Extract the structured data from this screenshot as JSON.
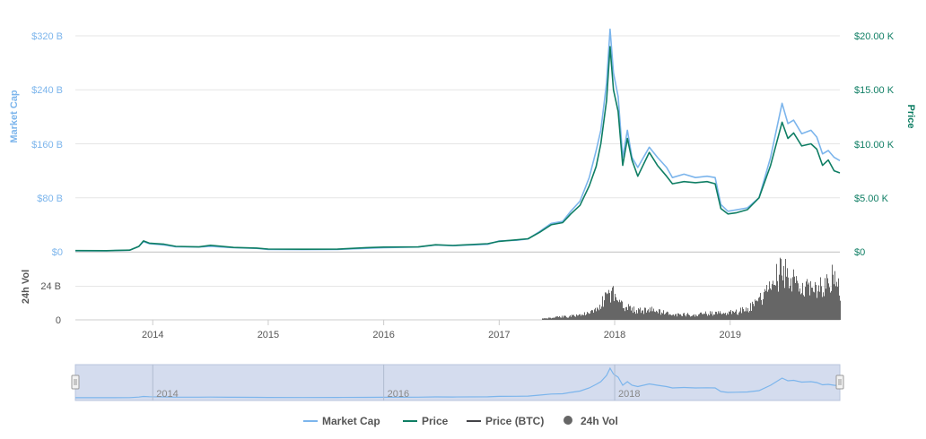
{
  "chart_data": {
    "type": "line",
    "axes": {
      "market_cap": {
        "label": "Market Cap",
        "ticks": [
          "$320 B",
          "$240 B",
          "$160 B",
          "$80 B",
          "$0"
        ],
        "tick_values": [
          320,
          240,
          160,
          80,
          0
        ],
        "ylim": [
          0,
          320
        ],
        "unit": "billion USD"
      },
      "price": {
        "label": "Price",
        "ticks": [
          "$20.00 K",
          "$15.00 K",
          "$10.00 K",
          "$5.00 K",
          "$0"
        ],
        "tick_values": [
          20000,
          15000,
          10000,
          5000,
          0
        ],
        "ylim": [
          0,
          20000
        ],
        "unit": "USD"
      },
      "volume": {
        "label": "24h Vol",
        "ticks": [
          "24 B",
          "0"
        ],
        "tick_values": [
          24,
          0
        ],
        "ylim": [
          0,
          48
        ],
        "unit": "billion USD"
      },
      "x": {
        "ticks": [
          "2014",
          "2015",
          "2016",
          "2017",
          "2018",
          "2019"
        ],
        "tick_values": [
          2014,
          2015,
          2016,
          2017,
          2018,
          2019
        ],
        "xlim": [
          2013.33,
          2019.95
        ]
      }
    },
    "series": [
      {
        "name": "Market Cap",
        "axis": "market_cap",
        "color": "#7cb5ec",
        "points": [
          [
            2013.33,
            1.5
          ],
          [
            2013.6,
            1.4
          ],
          [
            2013.8,
            2.2
          ],
          [
            2013.88,
            8
          ],
          [
            2013.92,
            15
          ],
          [
            2013.97,
            12
          ],
          [
            2014.1,
            10
          ],
          [
            2014.2,
            7.5
          ],
          [
            2014.4,
            7
          ],
          [
            2014.5,
            8
          ],
          [
            2014.7,
            6
          ],
          [
            2014.9,
            5
          ],
          [
            2015.0,
            3.5
          ],
          [
            2015.3,
            3.2
          ],
          [
            2015.6,
            3.5
          ],
          [
            2015.85,
            5
          ],
          [
            2016.0,
            6
          ],
          [
            2016.3,
            7
          ],
          [
            2016.45,
            10
          ],
          [
            2016.6,
            9
          ],
          [
            2016.9,
            11
          ],
          [
            2017.0,
            16
          ],
          [
            2017.15,
            17
          ],
          [
            2017.25,
            19
          ],
          [
            2017.35,
            30
          ],
          [
            2017.45,
            42
          ],
          [
            2017.55,
            45
          ],
          [
            2017.62,
            60
          ],
          [
            2017.7,
            75
          ],
          [
            2017.78,
            110
          ],
          [
            2017.84,
            150
          ],
          [
            2017.88,
            180
          ],
          [
            2017.93,
            250
          ],
          [
            2017.96,
            330
          ],
          [
            2017.99,
            265
          ],
          [
            2018.03,
            230
          ],
          [
            2018.07,
            140
          ],
          [
            2018.11,
            180
          ],
          [
            2018.15,
            140
          ],
          [
            2018.2,
            125
          ],
          [
            2018.3,
            155
          ],
          [
            2018.37,
            140
          ],
          [
            2018.45,
            125
          ],
          [
            2018.5,
            110
          ],
          [
            2018.6,
            115
          ],
          [
            2018.7,
            110
          ],
          [
            2018.8,
            112
          ],
          [
            2018.87,
            110
          ],
          [
            2018.92,
            70
          ],
          [
            2018.98,
            60
          ],
          [
            2019.05,
            62
          ],
          [
            2019.15,
            65
          ],
          [
            2019.25,
            80
          ],
          [
            2019.35,
            140
          ],
          [
            2019.45,
            220
          ],
          [
            2019.5,
            190
          ],
          [
            2019.55,
            195
          ],
          [
            2019.62,
            175
          ],
          [
            2019.7,
            180
          ],
          [
            2019.75,
            170
          ],
          [
            2019.8,
            145
          ],
          [
            2019.85,
            150
          ],
          [
            2019.9,
            140
          ],
          [
            2019.95,
            135
          ]
        ]
      },
      {
        "name": "Price",
        "axis": "price",
        "color": "#0f7e64",
        "points": [
          [
            2013.33,
            110
          ],
          [
            2013.6,
            100
          ],
          [
            2013.8,
            150
          ],
          [
            2013.88,
            500
          ],
          [
            2013.92,
            1000
          ],
          [
            2013.97,
            800
          ],
          [
            2014.1,
            700
          ],
          [
            2014.2,
            500
          ],
          [
            2014.4,
            450
          ],
          [
            2014.5,
            600
          ],
          [
            2014.7,
            400
          ],
          [
            2014.9,
            340
          ],
          [
            2015.0,
            250
          ],
          [
            2015.3,
            230
          ],
          [
            2015.6,
            240
          ],
          [
            2015.85,
            380
          ],
          [
            2016.0,
            430
          ],
          [
            2016.3,
            450
          ],
          [
            2016.45,
            650
          ],
          [
            2016.6,
            580
          ],
          [
            2016.9,
            750
          ],
          [
            2017.0,
            960
          ],
          [
            2017.15,
            1100
          ],
          [
            2017.25,
            1200
          ],
          [
            2017.35,
            1800
          ],
          [
            2017.45,
            2500
          ],
          [
            2017.55,
            2700
          ],
          [
            2017.62,
            3500
          ],
          [
            2017.7,
            4300
          ],
          [
            2017.78,
            6100
          ],
          [
            2017.84,
            7900
          ],
          [
            2017.88,
            10000
          ],
          [
            2017.93,
            14000
          ],
          [
            2017.96,
            19000
          ],
          [
            2017.99,
            15000
          ],
          [
            2018.03,
            13000
          ],
          [
            2018.07,
            8000
          ],
          [
            2018.11,
            10500
          ],
          [
            2018.15,
            8500
          ],
          [
            2018.2,
            7000
          ],
          [
            2018.3,
            9200
          ],
          [
            2018.37,
            8000
          ],
          [
            2018.45,
            7000
          ],
          [
            2018.5,
            6300
          ],
          [
            2018.6,
            6500
          ],
          [
            2018.7,
            6400
          ],
          [
            2018.8,
            6500
          ],
          [
            2018.87,
            6300
          ],
          [
            2018.92,
            4000
          ],
          [
            2018.98,
            3500
          ],
          [
            2019.05,
            3600
          ],
          [
            2019.15,
            3900
          ],
          [
            2019.25,
            5000
          ],
          [
            2019.35,
            8000
          ],
          [
            2019.45,
            12000
          ],
          [
            2019.5,
            10500
          ],
          [
            2019.55,
            11000
          ],
          [
            2019.62,
            9800
          ],
          [
            2019.7,
            10000
          ],
          [
            2019.75,
            9500
          ],
          [
            2019.8,
            8000
          ],
          [
            2019.85,
            8500
          ],
          [
            2019.9,
            7500
          ],
          [
            2019.95,
            7300
          ]
        ]
      },
      {
        "name": "Price (BTC)",
        "color": "#434348",
        "points": []
      },
      {
        "name": "24h Vol",
        "axis": "volume",
        "color": "#666666",
        "points": [
          [
            2013.33,
            0
          ],
          [
            2017.37,
            1
          ],
          [
            2017.45,
            1.5
          ],
          [
            2017.55,
            2.5
          ],
          [
            2017.62,
            3
          ],
          [
            2017.7,
            4
          ],
          [
            2017.78,
            5
          ],
          [
            2017.84,
            8
          ],
          [
            2017.9,
            15
          ],
          [
            2017.96,
            22
          ],
          [
            2018.0,
            20
          ],
          [
            2018.05,
            14
          ],
          [
            2018.1,
            10
          ],
          [
            2018.2,
            7
          ],
          [
            2018.3,
            8
          ],
          [
            2018.4,
            6
          ],
          [
            2018.5,
            4
          ],
          [
            2018.6,
            4
          ],
          [
            2018.7,
            4
          ],
          [
            2018.8,
            5
          ],
          [
            2018.87,
            5
          ],
          [
            2018.92,
            5
          ],
          [
            2018.98,
            6
          ],
          [
            2019.05,
            6
          ],
          [
            2019.15,
            9
          ],
          [
            2019.25,
            15
          ],
          [
            2019.32,
            22
          ],
          [
            2019.38,
            30
          ],
          [
            2019.45,
            38
          ],
          [
            2019.5,
            35
          ],
          [
            2019.55,
            30
          ],
          [
            2019.62,
            22
          ],
          [
            2019.7,
            25
          ],
          [
            2019.75,
            20
          ],
          [
            2019.8,
            28
          ],
          [
            2019.85,
            26
          ],
          [
            2019.9,
            40
          ],
          [
            2019.95,
            20
          ]
        ]
      }
    ],
    "navigator": {
      "labels": [
        "2014",
        "2016",
        "2018"
      ]
    },
    "legend": {
      "placement": "bottom",
      "items": [
        {
          "label": "Market Cap",
          "color": "#7cb5ec",
          "symbol": "line"
        },
        {
          "label": "Price",
          "color": "#0f7e64",
          "symbol": "line"
        },
        {
          "label": "Price (BTC)",
          "color": "#434348",
          "symbol": "line"
        },
        {
          "label": "24h Vol",
          "color": "#666666",
          "symbol": "circle"
        }
      ]
    },
    "grid": true
  }
}
